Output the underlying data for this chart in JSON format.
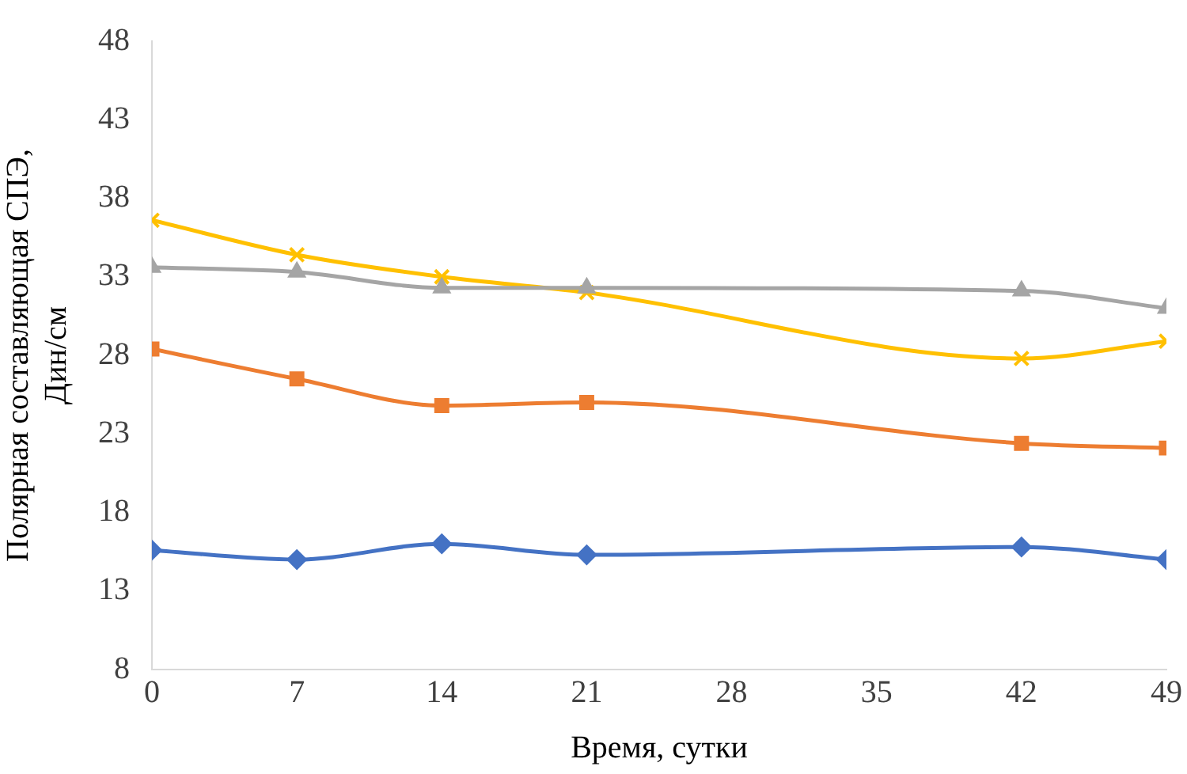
{
  "chart_data": {
    "type": "line",
    "xlabel": "Время, сутки",
    "ylabel": "Полярная составляющая СПЭ, Дин/см",
    "x": [
      0,
      7,
      14,
      21,
      42,
      49
    ],
    "xlim": [
      0,
      49
    ],
    "xticks": [
      0,
      7,
      14,
      21,
      28,
      35,
      42,
      49
    ],
    "ylim": [
      8,
      48
    ],
    "yticks": [
      8,
      13,
      18,
      23,
      28,
      33,
      38,
      43,
      48
    ],
    "grid": false,
    "legend": false,
    "series": [
      {
        "color": "#4472c4",
        "marker": "diamond",
        "values": [
          15.6,
          15.0,
          16.0,
          15.3,
          15.8,
          15.0
        ]
      },
      {
        "color": "#ed7d31",
        "marker": "square",
        "values": [
          28.4,
          26.5,
          24.8,
          25.0,
          22.4,
          22.1
        ]
      },
      {
        "color": "#a5a5a5",
        "marker": "triangle",
        "values": [
          33.6,
          33.3,
          32.3,
          32.3,
          32.1,
          31.0
        ]
      },
      {
        "color": "#ffc000",
        "marker": "cross",
        "values": [
          36.6,
          34.4,
          33.0,
          32.0,
          27.8,
          28.9
        ]
      }
    ]
  }
}
